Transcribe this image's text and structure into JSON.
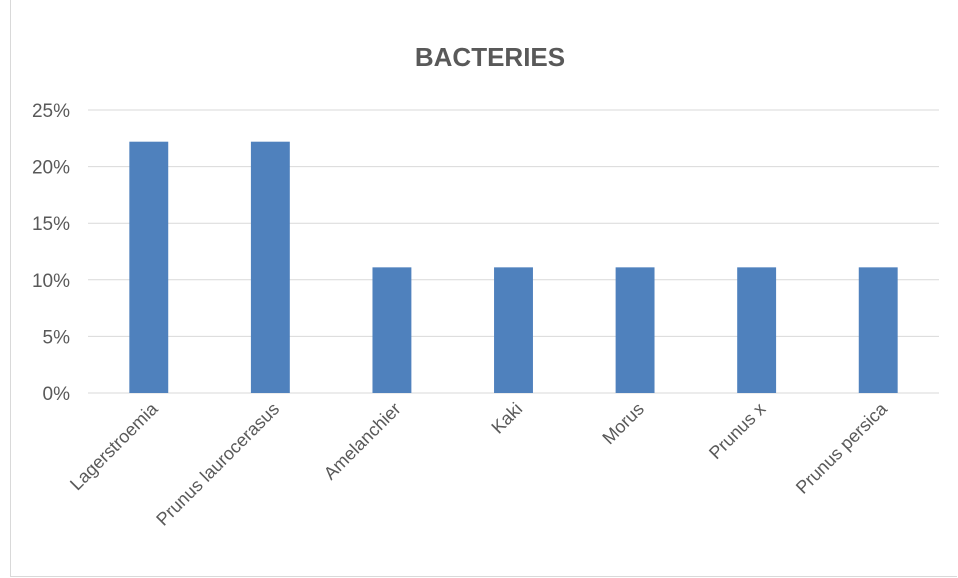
{
  "chart_data": {
    "type": "bar",
    "title": "BACTERIES",
    "categories": [
      "Lagerstroemia",
      "Prunus laurocerasus",
      "Amelanchier",
      "Kaki",
      "Morus",
      "Prunus x",
      "Prunus persica"
    ],
    "values": [
      22.2,
      22.2,
      11.1,
      11.1,
      11.1,
      11.1,
      11.1
    ],
    "yticks": [
      "0%",
      "5%",
      "10%",
      "15%",
      "20%",
      "25%"
    ],
    "ylim": [
      0,
      25
    ],
    "grid": true,
    "bar_color": "#4f81bd",
    "legend": "none"
  }
}
